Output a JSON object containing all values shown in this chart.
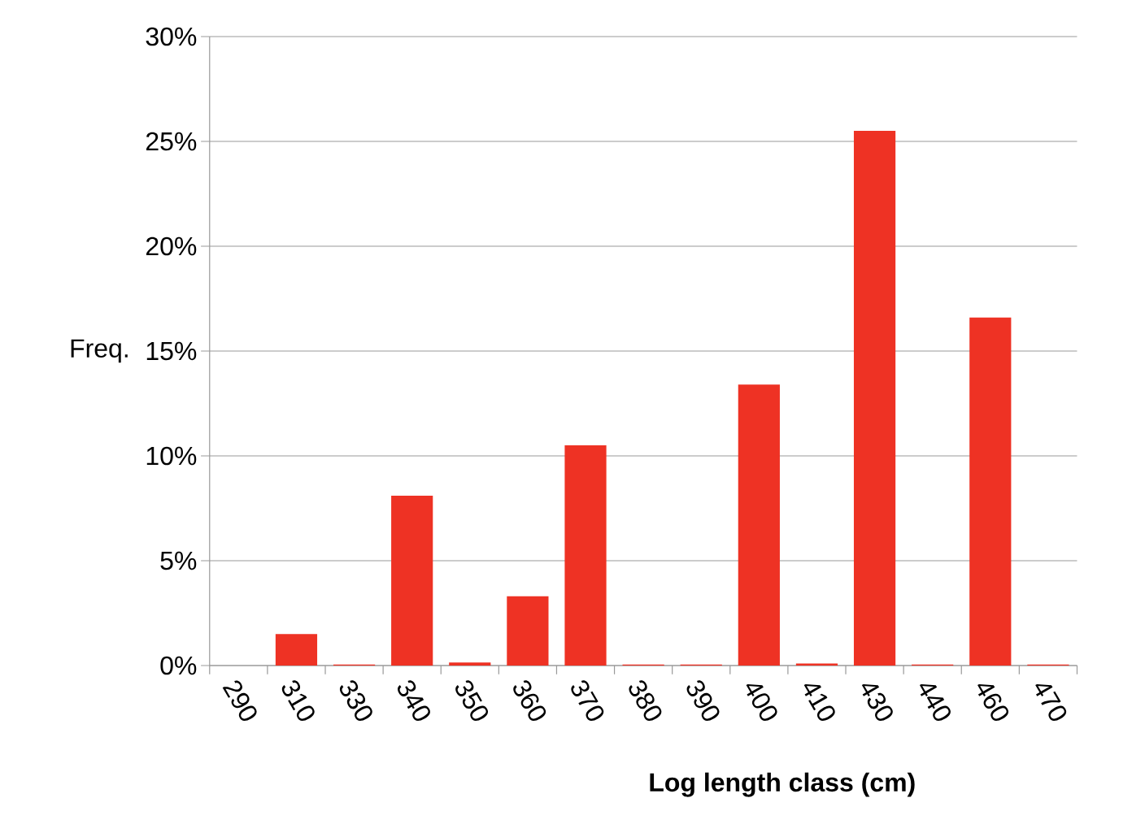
{
  "chart_data": {
    "type": "bar",
    "categories": [
      "290",
      "310",
      "330",
      "340",
      "350",
      "360",
      "370",
      "380",
      "390",
      "400",
      "410",
      "430",
      "440",
      "460",
      "470"
    ],
    "values": [
      0,
      1.5,
      0.05,
      8.1,
      0.15,
      3.3,
      10.5,
      0.05,
      0.05,
      13.4,
      0.1,
      25.5,
      0.05,
      16.6,
      0.05
    ],
    "color": "#ee3224",
    "ylim": [
      0,
      30
    ],
    "yticks": [
      {
        "value": 0,
        "label": "0%"
      },
      {
        "value": 5,
        "label": "5%"
      },
      {
        "value": 10,
        "label": "10%"
      },
      {
        "value": 15,
        "label": "15%"
      },
      {
        "value": 20,
        "label": "20%"
      },
      {
        "value": 25,
        "label": "25%"
      },
      {
        "value": 30,
        "label": "30%"
      }
    ],
    "ylabel": "Freq.",
    "xlabel": "Log length class (cm)",
    "grid": "y"
  }
}
